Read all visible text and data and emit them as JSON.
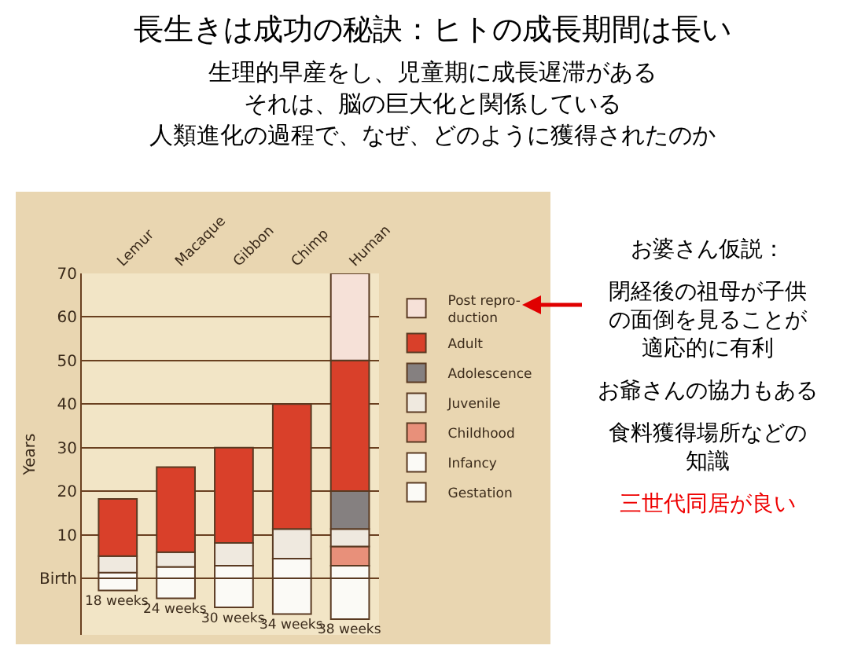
{
  "chart_data": {
    "type": "bar",
    "stacked": true,
    "title": "長生きは成功の秘訣：ヒトの成長期間は長い",
    "subtitle": "生理的早産をし、児童期に成長遅滞がある",
    "ylabel": "Years",
    "categories": [
      "Lemur",
      "Macaque",
      "Gibbon",
      "Chimp",
      "Human"
    ],
    "series": [
      {
        "name": "Gestation",
        "color": "#fbfaf6",
        "values": [
          -2.8,
          -4.6,
          -6.7,
          -8.2,
          -9.4
        ]
      },
      {
        "name": "Infancy",
        "color": "#fbfaf6",
        "values": [
          1.3,
          2.6,
          2.9,
          4.5,
          2.9
        ]
      },
      {
        "name": "Childhood",
        "color": "#e8907a",
        "values": [
          null,
          null,
          null,
          null,
          4.4
        ]
      },
      {
        "name": "Juvenile",
        "color": "#efe9df",
        "values": [
          3.8,
          3.4,
          5.2,
          6.8,
          4.0
        ]
      },
      {
        "name": "Adolescence",
        "color": "#858080",
        "values": [
          null,
          null,
          null,
          null,
          8.7
        ]
      },
      {
        "name": "Adult",
        "color": "#d9402a",
        "values": [
          13.1,
          19.5,
          21.9,
          28.7,
          30
        ]
      },
      {
        "name": "Post repro-\nduction",
        "color": "#f6e1d8",
        "values": [
          null,
          null,
          null,
          null,
          20
        ]
      }
    ],
    "ylim": [
      -13,
      70
    ],
    "yticks": [
      {
        "value": 0,
        "label": "Birth"
      },
      10,
      20,
      30,
      40,
      50,
      60,
      70
    ],
    "grid": "y",
    "legend": "right",
    "annotations": [
      {
        "text": "18 weeks",
        "x": "Lemur",
        "y": -2.8
      },
      {
        "text": "24 weeks",
        "x": "Macaque",
        "y": -4.6
      },
      {
        "text": "30 weeks",
        "x": "Gibbon",
        "y": -6.7
      },
      {
        "text": "34 weeks",
        "x": "Chimp",
        "y": -8.2
      },
      {
        "text": "38 weeks",
        "x": "Human",
        "y": -9.4
      },
      "それは、脳の巨大化と関係している",
      "人類進化の過程で、なぜ、どのように獲得されたのか",
      "お婆さん仮説：",
      "閉経後の祖母が子供の面倒を見ることが適応的に有利",
      "お爺さんの協力もある",
      "食料獲得場所などの知識",
      "三世代同居が良い"
    ]
  }
}
